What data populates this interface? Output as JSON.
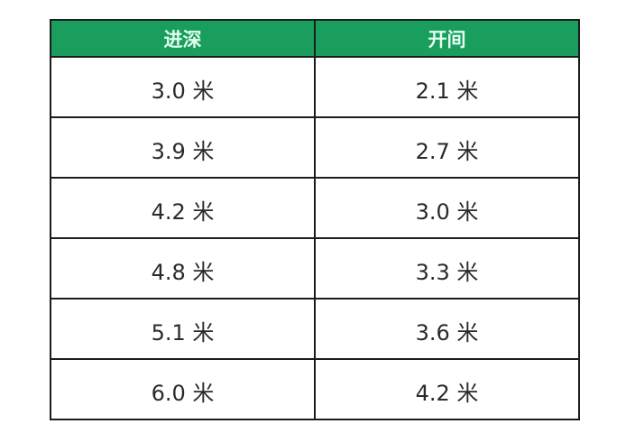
{
  "colors": {
    "header_bg": "#1a9e5e",
    "header_text": "#e4fff0",
    "border": "#1c1c1c"
  },
  "table": {
    "headers": [
      "进深",
      "开间"
    ],
    "rows": [
      [
        "3.0 米",
        "2.1 米"
      ],
      [
        "3.9 米",
        "2.7 米"
      ],
      [
        "4.2 米",
        "3.0 米"
      ],
      [
        "4.8 米",
        "3.3 米"
      ],
      [
        "5.1 米",
        "3.6 米"
      ],
      [
        "6.0 米",
        "4.2 米"
      ]
    ]
  }
}
